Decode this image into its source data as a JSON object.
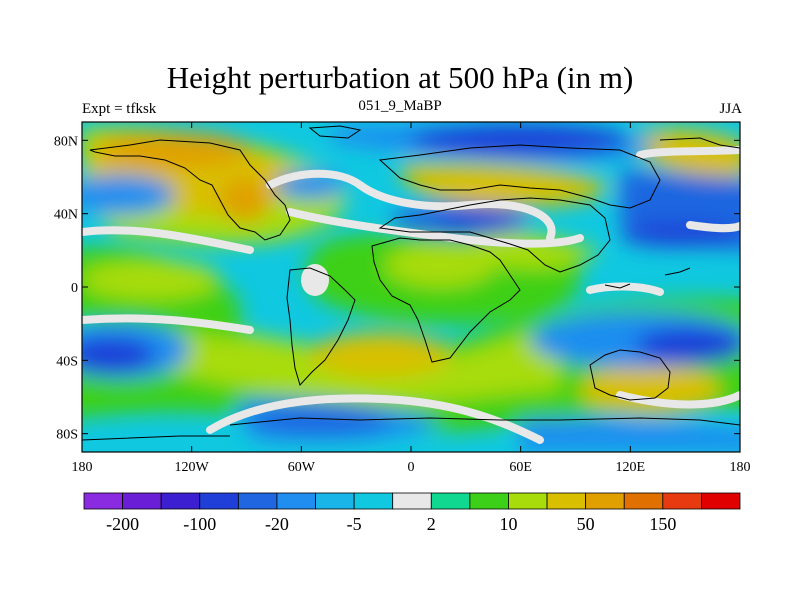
{
  "title": "Height perturbation at 500 hPa (in m)",
  "left_label": "Expt = tfksk",
  "center_label": "051_9_MaBP",
  "right_label": "JJA",
  "lon_ticks": [
    "180",
    "120W",
    "60W",
    "0",
    "60E",
    "120E",
    "180"
  ],
  "lat_ticks": [
    "80N",
    "40N",
    "0",
    "40S",
    "80S"
  ],
  "colorbar": {
    "colors": [
      "#8a2be2",
      "#6a1fd6",
      "#3c1fd0",
      "#1f3fd8",
      "#1f66e0",
      "#1f8ef0",
      "#19b4e8",
      "#10c8e0",
      "#e8e8e8",
      "#10d890",
      "#3cd018",
      "#a8dc0a",
      "#d8c000",
      "#e0a000",
      "#e07000",
      "#e83a10",
      "#e00000"
    ],
    "tick_labels": [
      "-200",
      "-100",
      "-20",
      "-5",
      "2",
      "10",
      "50",
      "150"
    ]
  }
}
